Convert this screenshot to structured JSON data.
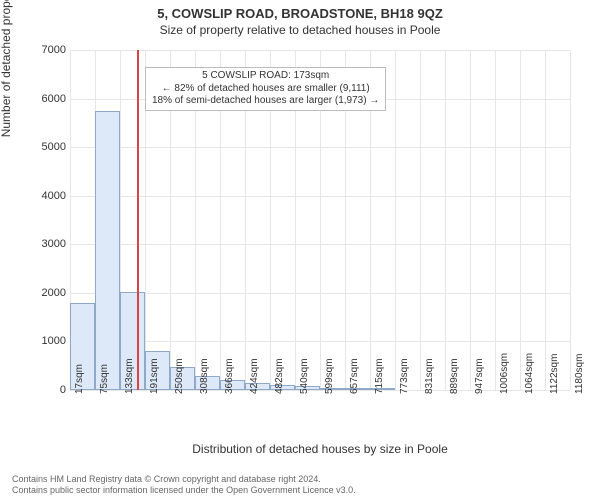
{
  "header": {
    "title": "5, COWSLIP ROAD, BROADSTONE, BH18 9QZ",
    "subtitle": "Size of property relative to detached houses in Poole"
  },
  "chart": {
    "type": "histogram",
    "ylabel": "Number of detached properties",
    "xlabel": "Distribution of detached houses by size in Poole",
    "ylim": [
      0,
      7000
    ],
    "ytick_step": 1000,
    "yticks": [
      0,
      1000,
      2000,
      3000,
      4000,
      5000,
      6000,
      7000
    ],
    "xticks": [
      "17sqm",
      "75sqm",
      "133sqm",
      "191sqm",
      "250sqm",
      "308sqm",
      "366sqm",
      "424sqm",
      "482sqm",
      "540sqm",
      "599sqm",
      "657sqm",
      "715sqm",
      "773sqm",
      "831sqm",
      "889sqm",
      "947sqm",
      "1006sqm",
      "1064sqm",
      "1122sqm",
      "1180sqm"
    ],
    "bar_values": [
      1790,
      5740,
      2020,
      800,
      470,
      290,
      200,
      140,
      100,
      75,
      50,
      35,
      20,
      0,
      0,
      0,
      0,
      0,
      0,
      0
    ],
    "bar_fill": "#dde8f8",
    "bar_stroke": "#8fa9c9",
    "background_color": "#ffffff",
    "grid_color": "#e6e6e6",
    "axis_color": "#cccccc",
    "tick_fontsize": 10,
    "label_fontsize": 12,
    "reference_line": {
      "x_bin": 2.69,
      "color": "#d94545",
      "width": 2
    }
  },
  "annotation": {
    "lines": [
      "5 COWSLIP ROAD: 173sqm",
      "← 82% of detached houses are smaller (9,111)",
      "18% of semi-detached houses are larger (1,973) →"
    ],
    "border_color": "#bcbcbc",
    "bg_color": "#ffffff",
    "fontsize": 10,
    "left_bin": 3.0,
    "top_value": 6650
  },
  "footer": {
    "line1": "Contains HM Land Registry data © Crown copyright and database right 2024.",
    "line2": "Contains public sector information licensed under the Open Government Licence v3.0."
  }
}
